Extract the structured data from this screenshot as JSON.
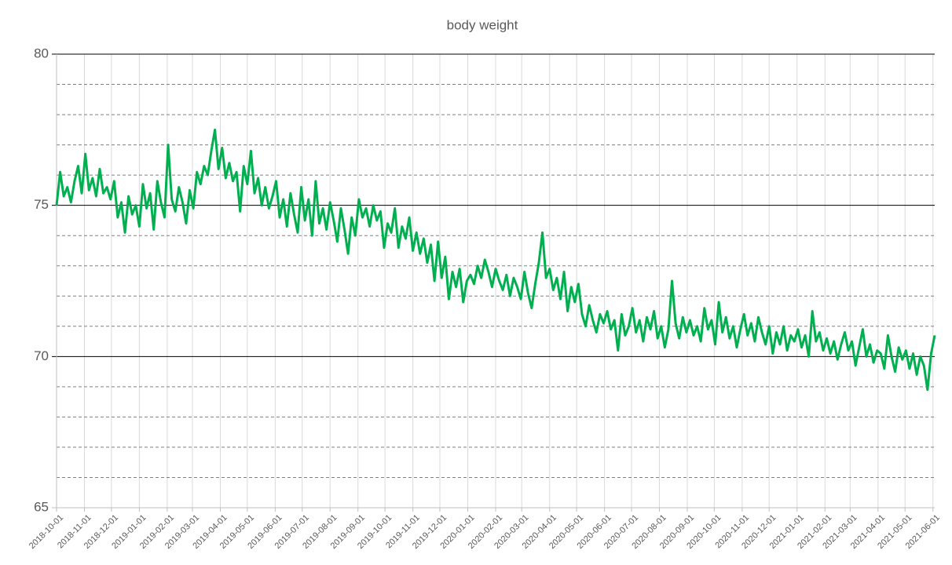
{
  "chart_data": {
    "type": "line",
    "title": "body weight",
    "color": "#00b050",
    "ylim": [
      65,
      80
    ],
    "yticks": [
      65,
      70,
      75,
      80
    ],
    "minor_yticks": [
      66,
      67,
      68,
      69,
      71,
      72,
      73,
      74,
      76,
      77,
      78,
      79
    ],
    "xlim": [
      "2018-10-01",
      "2021-06-03"
    ],
    "xticks": [
      "2018-10-01",
      "2018-11-01",
      "2018-12-01",
      "2019-01-01",
      "2019-02-01",
      "2019-03-01",
      "2019-04-01",
      "2019-05-01",
      "2019-06-01",
      "2019-07-01",
      "2019-08-01",
      "2019-09-01",
      "2019-10-01",
      "2019-11-01",
      "2019-12-01",
      "2020-01-01",
      "2020-02-01",
      "2020-03-01",
      "2020-04-01",
      "2020-05-01",
      "2020-06-01",
      "2020-07-01",
      "2020-08-01",
      "2020-09-01",
      "2020-10-01",
      "2020-11-01",
      "2020-12-01",
      "2021-01-01",
      "2021-02-01",
      "2021-03-01",
      "2021-04-01",
      "2021-05-01",
      "2021-06-01"
    ],
    "grid": true,
    "x": [
      "2018-10-01",
      "2018-10-05",
      "2018-10-09",
      "2018-10-13",
      "2018-10-17",
      "2018-10-21",
      "2018-10-25",
      "2018-10-29",
      "2018-11-02",
      "2018-11-06",
      "2018-11-10",
      "2018-11-14",
      "2018-11-18",
      "2018-11-22",
      "2018-11-26",
      "2018-11-30",
      "2018-12-04",
      "2018-12-08",
      "2018-12-12",
      "2018-12-16",
      "2018-12-20",
      "2018-12-24",
      "2018-12-28",
      "2019-01-01",
      "2019-01-05",
      "2019-01-09",
      "2019-01-13",
      "2019-01-17",
      "2019-01-21",
      "2019-01-25",
      "2019-01-29",
      "2019-02-02",
      "2019-02-06",
      "2019-02-10",
      "2019-02-14",
      "2019-02-18",
      "2019-02-22",
      "2019-02-26",
      "2019-03-02",
      "2019-03-06",
      "2019-03-10",
      "2019-03-14",
      "2019-03-18",
      "2019-03-22",
      "2019-03-26",
      "2019-03-30",
      "2019-04-03",
      "2019-04-07",
      "2019-04-11",
      "2019-04-15",
      "2019-04-19",
      "2019-04-23",
      "2019-04-27",
      "2019-05-01",
      "2019-05-05",
      "2019-05-09",
      "2019-05-13",
      "2019-05-17",
      "2019-05-21",
      "2019-05-25",
      "2019-05-29",
      "2019-06-02",
      "2019-06-06",
      "2019-06-10",
      "2019-06-14",
      "2019-06-18",
      "2019-06-22",
      "2019-06-26",
      "2019-06-30",
      "2019-07-04",
      "2019-07-08",
      "2019-07-12",
      "2019-07-16",
      "2019-07-20",
      "2019-07-24",
      "2019-07-28",
      "2019-08-01",
      "2019-08-05",
      "2019-08-09",
      "2019-08-13",
      "2019-08-17",
      "2019-08-21",
      "2019-08-25",
      "2019-08-29",
      "2019-09-02",
      "2019-09-06",
      "2019-09-10",
      "2019-09-14",
      "2019-09-18",
      "2019-09-22",
      "2019-09-26",
      "2019-09-30",
      "2019-10-04",
      "2019-10-08",
      "2019-10-12",
      "2019-10-16",
      "2019-10-20",
      "2019-10-24",
      "2019-10-28",
      "2019-11-01",
      "2019-11-05",
      "2019-11-09",
      "2019-11-13",
      "2019-11-17",
      "2019-11-21",
      "2019-11-25",
      "2019-11-29",
      "2019-12-03",
      "2019-12-07",
      "2019-12-11",
      "2019-12-15",
      "2019-12-19",
      "2019-12-23",
      "2019-12-27",
      "2019-12-31",
      "2020-01-04",
      "2020-01-08",
      "2020-01-12",
      "2020-01-16",
      "2020-01-20",
      "2020-01-24",
      "2020-01-28",
      "2020-02-01",
      "2020-02-05",
      "2020-02-09",
      "2020-02-13",
      "2020-02-17",
      "2020-02-21",
      "2020-02-25",
      "2020-02-29",
      "2020-03-04",
      "2020-03-08",
      "2020-03-12",
      "2020-03-16",
      "2020-03-20",
      "2020-03-24",
      "2020-03-28",
      "2020-04-01",
      "2020-04-05",
      "2020-04-09",
      "2020-04-13",
      "2020-04-17",
      "2020-04-21",
      "2020-04-25",
      "2020-04-29",
      "2020-05-03",
      "2020-05-07",
      "2020-05-11",
      "2020-05-15",
      "2020-05-19",
      "2020-05-23",
      "2020-05-27",
      "2020-05-31",
      "2020-06-04",
      "2020-06-08",
      "2020-06-12",
      "2020-06-16",
      "2020-06-20",
      "2020-06-24",
      "2020-06-28",
      "2020-07-02",
      "2020-07-06",
      "2020-07-10",
      "2020-07-14",
      "2020-07-18",
      "2020-07-22",
      "2020-07-26",
      "2020-07-30",
      "2020-08-03",
      "2020-08-07",
      "2020-08-11",
      "2020-08-15",
      "2020-08-19",
      "2020-08-23",
      "2020-08-27",
      "2020-08-31",
      "2020-09-04",
      "2020-09-08",
      "2020-09-12",
      "2020-09-16",
      "2020-09-20",
      "2020-09-24",
      "2020-09-28",
      "2020-10-02",
      "2020-10-06",
      "2020-10-10",
      "2020-10-14",
      "2020-10-18",
      "2020-10-22",
      "2020-10-26",
      "2020-10-30",
      "2020-11-03",
      "2020-11-07",
      "2020-11-11",
      "2020-11-15",
      "2020-11-19",
      "2020-11-23",
      "2020-11-27",
      "2020-12-01",
      "2020-12-05",
      "2020-12-09",
      "2020-12-13",
      "2020-12-17",
      "2020-12-21",
      "2020-12-25",
      "2020-12-29",
      "2021-01-02",
      "2021-01-06",
      "2021-01-10",
      "2021-01-14",
      "2021-01-18",
      "2021-01-22",
      "2021-01-26",
      "2021-01-30",
      "2021-02-03",
      "2021-02-07",
      "2021-02-11",
      "2021-02-15",
      "2021-02-19",
      "2021-02-23",
      "2021-02-27",
      "2021-03-03",
      "2021-03-07",
      "2021-03-11",
      "2021-03-15",
      "2021-03-19",
      "2021-03-23",
      "2021-03-27",
      "2021-03-31",
      "2021-04-04",
      "2021-04-08",
      "2021-04-12",
      "2021-04-16",
      "2021-04-20",
      "2021-04-24",
      "2021-04-28",
      "2021-05-02",
      "2021-05-06",
      "2021-05-10",
      "2021-05-14",
      "2021-05-18",
      "2021-05-22",
      "2021-05-26",
      "2021-05-30",
      "2021-06-03"
    ],
    "values": [
      75.0,
      76.1,
      75.3,
      75.6,
      75.1,
      75.8,
      76.3,
      75.4,
      76.7,
      75.5,
      75.9,
      75.3,
      76.2,
      75.4,
      75.6,
      75.2,
      75.8,
      74.6,
      75.1,
      74.1,
      75.3,
      74.7,
      75.0,
      74.3,
      75.7,
      74.9,
      75.4,
      74.2,
      75.8,
      75.1,
      74.6,
      77.0,
      75.2,
      74.8,
      75.6,
      75.1,
      74.4,
      75.5,
      74.9,
      76.1,
      75.7,
      76.3,
      76.0,
      76.8,
      77.5,
      76.2,
      76.9,
      75.9,
      76.4,
      75.8,
      76.1,
      74.8,
      76.3,
      75.7,
      76.8,
      75.4,
      75.9,
      75.0,
      75.6,
      74.9,
      75.3,
      75.8,
      74.6,
      75.2,
      74.3,
      75.4,
      74.7,
      74.1,
      75.6,
      74.5,
      75.2,
      74.0,
      75.8,
      74.4,
      74.9,
      74.2,
      75.1,
      74.5,
      73.8,
      74.9,
      74.2,
      73.4,
      74.6,
      74.0,
      75.2,
      74.6,
      74.9,
      74.3,
      75.0,
      74.5,
      74.8,
      73.6,
      74.4,
      74.1,
      74.9,
      73.6,
      74.3,
      73.9,
      74.6,
      73.5,
      74.1,
      73.4,
      73.9,
      73.1,
      73.7,
      72.5,
      73.8,
      72.6,
      73.3,
      71.9,
      72.8,
      72.3,
      72.9,
      71.8,
      72.5,
      72.7,
      72.4,
      73.0,
      72.6,
      73.2,
      72.8,
      72.3,
      72.9,
      72.5,
      72.2,
      72.7,
      72.0,
      72.6,
      72.3,
      71.9,
      72.8,
      72.1,
      71.6,
      72.4,
      73.1,
      74.1,
      72.6,
      72.9,
      72.2,
      72.6,
      71.9,
      72.8,
      71.5,
      72.3,
      71.8,
      72.4,
      71.4,
      71.0,
      71.7,
      71.2,
      70.8,
      71.4,
      71.1,
      71.5,
      70.9,
      71.2,
      70.2,
      71.4,
      70.7,
      71.0,
      71.6,
      70.8,
      71.2,
      70.5,
      71.3,
      70.9,
      71.5,
      70.6,
      71.0,
      70.3,
      70.9,
      72.5,
      71.1,
      70.6,
      71.3,
      70.8,
      71.2,
      70.7,
      71.0,
      70.5,
      71.6,
      70.9,
      71.2,
      70.4,
      71.8,
      70.8,
      71.3,
      70.6,
      71.0,
      70.3,
      70.9,
      71.4,
      70.7,
      71.1,
      70.5,
      71.3,
      70.8,
      70.4,
      71.0,
      70.1,
      70.8,
      70.4,
      71.0,
      70.2,
      70.7,
      70.5,
      70.9,
      70.3,
      70.7,
      70.0,
      71.5,
      70.5,
      70.8,
      70.2,
      70.6,
      70.1,
      70.5,
      69.9,
      70.4,
      70.8,
      70.2,
      70.5,
      69.7,
      70.3,
      70.9,
      70.0,
      70.4,
      69.8,
      70.2,
      70.1,
      69.6,
      70.7,
      70.0,
      69.5,
      70.3,
      69.9,
      70.2,
      69.6,
      70.1,
      69.4,
      70.0,
      69.7,
      68.9,
      70.1,
      70.7
    ]
  }
}
